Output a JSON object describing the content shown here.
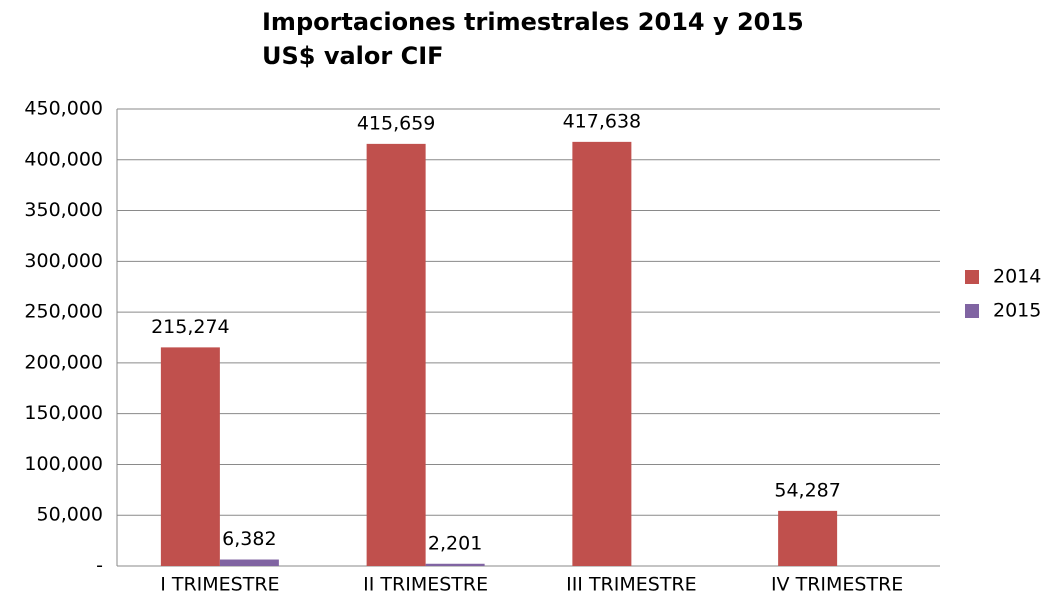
{
  "chart_data": {
    "type": "bar",
    "title": "Importaciones trimestrales 2014 y 2015",
    "subtitle": "US$ valor CIF",
    "categories": [
      "I TRIMESTRE",
      "II TRIMESTRE",
      "III TRIMESTRE",
      "IV TRIMESTRE"
    ],
    "series": [
      {
        "name": "2014",
        "color": "#c0504d",
        "values": [
          215274,
          415659,
          417638,
          54287
        ],
        "value_labels": [
          "215,274",
          "415,659",
          "417,638",
          "54,287"
        ]
      },
      {
        "name": "2015",
        "color": "#8064a2",
        "values": [
          6382,
          2201,
          null,
          null
        ],
        "value_labels": [
          "6,382",
          "2,201",
          null,
          null
        ]
      }
    ],
    "ylim": [
      0,
      450000
    ],
    "yticks": [
      {
        "value": 0,
        "label": "-"
      },
      {
        "value": 50000,
        "label": "50,000"
      },
      {
        "value": 100000,
        "label": "100,000"
      },
      {
        "value": 150000,
        "label": "150,000"
      },
      {
        "value": 200000,
        "label": "200,000"
      },
      {
        "value": 250000,
        "label": "250,000"
      },
      {
        "value": 300000,
        "label": "300,000"
      },
      {
        "value": 350000,
        "label": "350,000"
      },
      {
        "value": 400000,
        "label": "400,000"
      },
      {
        "value": 450000,
        "label": "450,000"
      }
    ],
    "grid": true,
    "legend": "right"
  }
}
